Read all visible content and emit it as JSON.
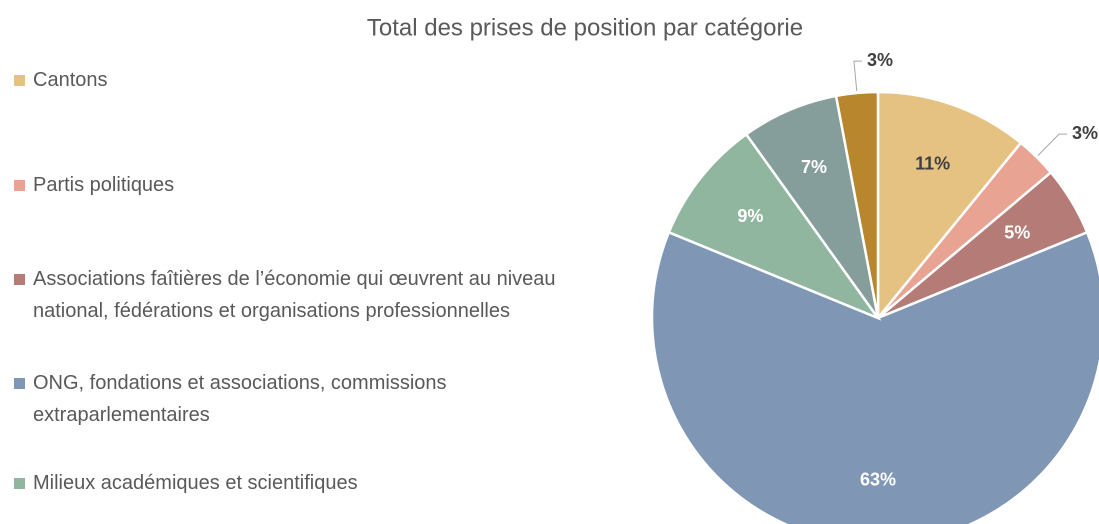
{
  "chart_data": {
    "type": "pie",
    "title": "Total des prises de position par catégorie",
    "categories": [
      "Cantons",
      "Partis politiques",
      "Associations faîtières de l’économie qui œuvrent au niveau national, fédérations et organisations professionnelles",
      "ONG, fondations et associations, commissions extraparlementaires",
      "Milieux académiques et scientifiques",
      null,
      null
    ],
    "values": [
      11,
      3,
      5,
      63,
      9,
      7,
      3
    ],
    "value_labels": [
      "11%",
      "3%",
      "5%",
      "63%",
      "9%",
      "7%",
      "3%"
    ],
    "colors": [
      "#e5c281",
      "#e8a393",
      "#b57b76",
      "#7f97b5",
      "#90b6a0",
      "#859e9b",
      "#b8862c"
    ],
    "legend": "left"
  }
}
